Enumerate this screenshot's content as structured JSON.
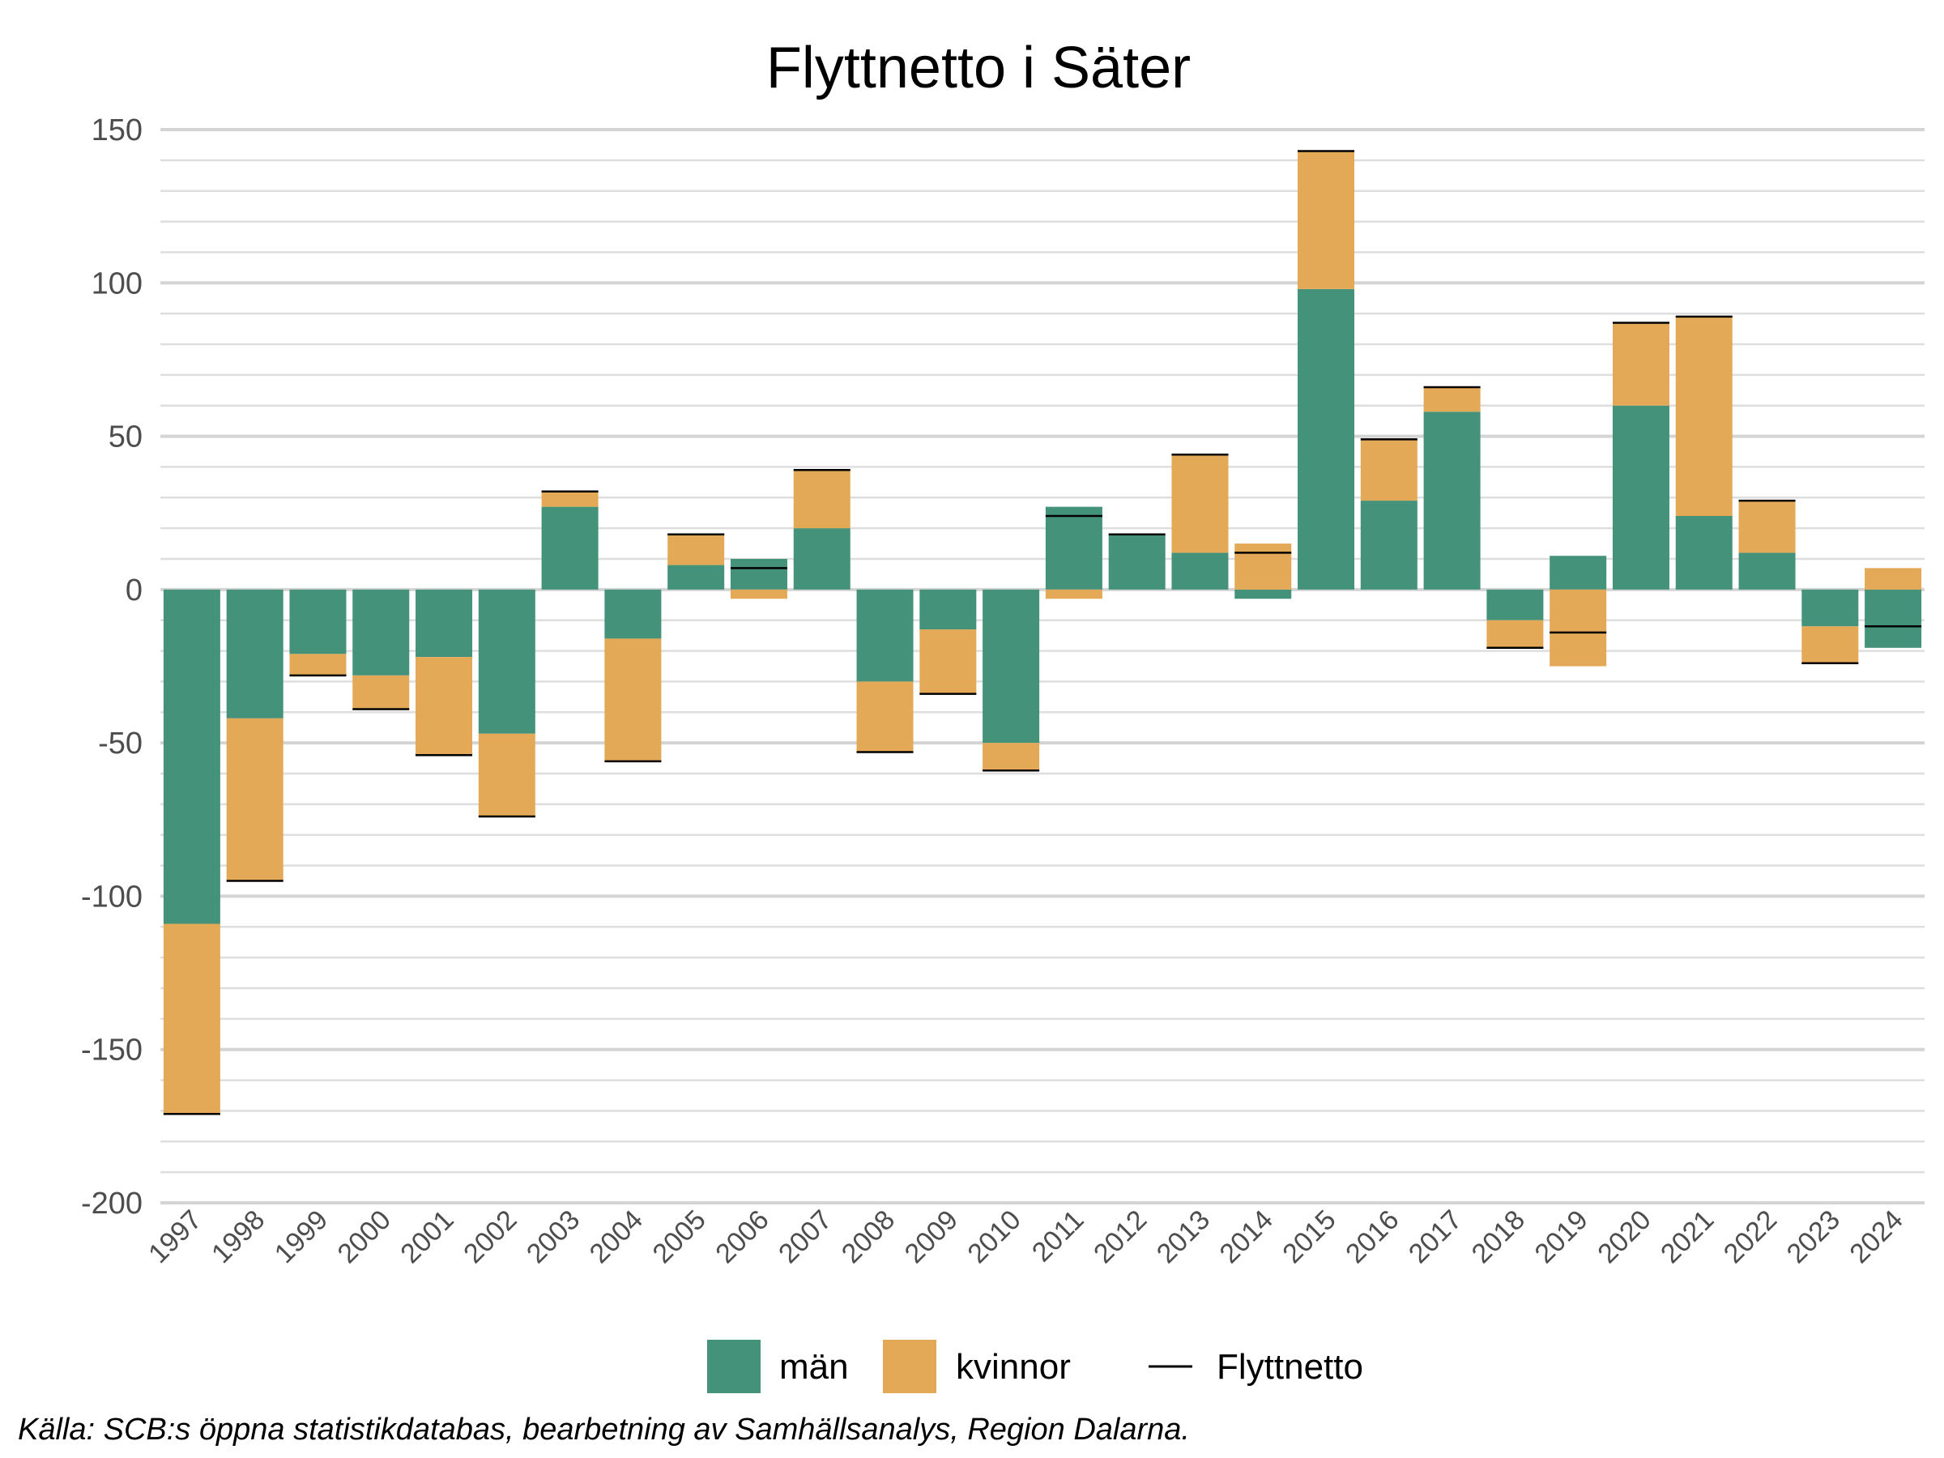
{
  "colors": {
    "man": "#44927a",
    "kvinnor": "#e3a956",
    "net_line": "#000000",
    "grid_major": "#d4d4d4",
    "grid_minor": "#dedede"
  },
  "chart_data": {
    "type": "bar",
    "stacked": true,
    "title": "Flyttnetto i Säter",
    "xlabel": "",
    "ylabel": "",
    "ylim": [
      -200,
      150
    ],
    "yticks": [
      "150",
      "100",
      "50",
      "0",
      "-50",
      "-100",
      "-150",
      "-200"
    ],
    "ytick_values": [
      150,
      100,
      50,
      0,
      -50,
      -100,
      -150,
      -200
    ],
    "grid": true,
    "legend_position": "bottom",
    "categories": [
      "1997",
      "1998",
      "1999",
      "2000",
      "2001",
      "2002",
      "2003",
      "2004",
      "2005",
      "2006",
      "2007",
      "2008",
      "2009",
      "2010",
      "2011",
      "2012",
      "2013",
      "2014",
      "2015",
      "2016",
      "2017",
      "2018",
      "2019",
      "2020",
      "2021",
      "2022",
      "2023",
      "2024"
    ],
    "series": [
      {
        "name": "män",
        "values": [
          -109,
          -42,
          -21,
          -28,
          -22,
          -47,
          27,
          -16,
          8,
          10,
          20,
          -30,
          -13,
          -50,
          27,
          18,
          12,
          -3,
          98,
          29,
          58,
          -10,
          11,
          60,
          24,
          12,
          -12,
          -19
        ]
      },
      {
        "name": "kvinnor",
        "values": [
          -62,
          -53,
          -7,
          -11,
          -32,
          -27,
          5,
          -40,
          10,
          -3,
          19,
          -23,
          -21,
          -9,
          -3,
          0,
          32,
          15,
          45,
          20,
          8,
          -9,
          -25,
          27,
          65,
          17,
          -12,
          7
        ]
      }
    ],
    "line": {
      "name": "Flyttnetto",
      "values": [
        -171,
        -95,
        -28,
        -39,
        -54,
        -74,
        32,
        -56,
        18,
        7,
        39,
        -53,
        -34,
        -59,
        24,
        18,
        44,
        12,
        143,
        49,
        66,
        -19,
        -14,
        87,
        89,
        29,
        -24,
        -12
      ]
    },
    "caption": "Källa: SCB:s öppna statistikdatabas, bearbetning av Samhällsanalys, Region Dalarna."
  }
}
